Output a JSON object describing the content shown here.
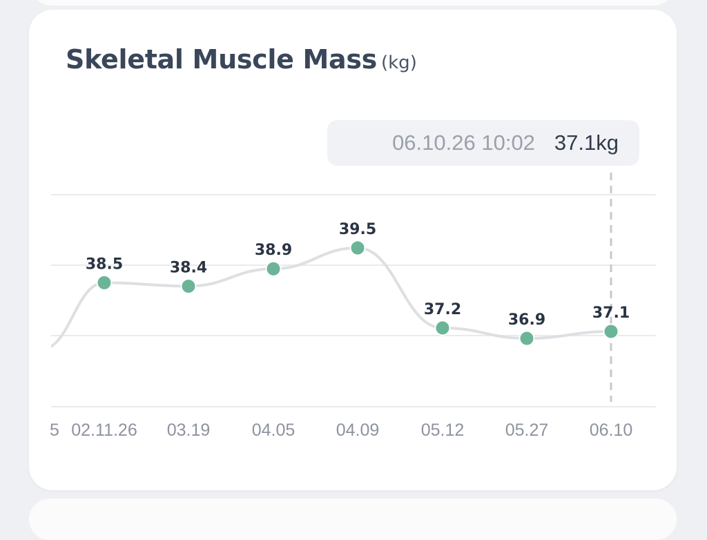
{
  "card": {
    "title": "Skeletal Muscle Mass",
    "unit": "(kg)"
  },
  "tooltip": {
    "datetime": "06.10.26 10:02",
    "value": "37.1kg"
  },
  "chart_data": {
    "type": "line",
    "title": "Skeletal Muscle Mass",
    "ylabel": "(kg)",
    "categories": [
      "02.11.26",
      "03.19",
      "04.05",
      "04.09",
      "05.12",
      "05.27",
      "06.10"
    ],
    "values": [
      38.5,
      38.4,
      38.9,
      39.5,
      37.2,
      36.9,
      37.1
    ],
    "data_labels": [
      "38.5",
      "38.4",
      "38.9",
      "39.5",
      "37.2",
      "36.9",
      "37.1"
    ],
    "partial_leading_tick": "5",
    "selected_index": 6,
    "grid": true,
    "colors": {
      "point": "#6cb497",
      "line": "#dedfe3",
      "grid": "#e9eaed",
      "selector": "#c5c8cd"
    }
  }
}
